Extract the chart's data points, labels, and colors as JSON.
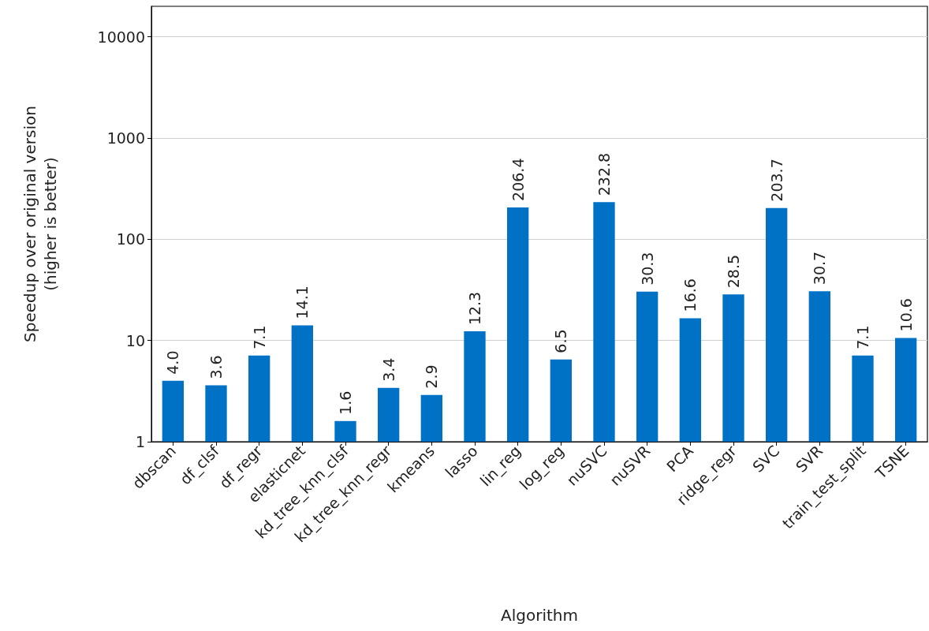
{
  "chart_data": {
    "type": "bar",
    "xlabel": "Algorithm",
    "ylabel": "Speedup over original version\n(higher is better)",
    "categories": [
      "dbscan",
      "df_clsf",
      "df_regr",
      "elasticnet",
      "kd_tree_knn_clsf",
      "kd_tree_knn_regr",
      "kmeans",
      "lasso",
      "lin_reg",
      "log_reg",
      "nuSVC",
      "nuSVR",
      "PCA",
      "ridge_regr",
      "SVC",
      "SVR",
      "train_test_split",
      "TSNE"
    ],
    "values": [
      4.0,
      3.6,
      7.1,
      14.1,
      1.6,
      3.4,
      2.9,
      12.3,
      206.4,
      6.5,
      232.8,
      30.3,
      16.6,
      28.5,
      203.7,
      30.7,
      7.1,
      10.6
    ],
    "value_labels": [
      "4.0",
      "3.6",
      "7.1",
      "14.1",
      "1.6",
      "3.4",
      "2.9",
      "12.3",
      "206.4",
      "6.5",
      "232.8",
      "30.3",
      "16.6",
      "28.5",
      "203.7",
      "30.7",
      "7.1",
      "10.6"
    ],
    "color": "#0072c6",
    "log": "y",
    "ylim": [
      1,
      20000
    ],
    "yticks": [
      1,
      10,
      100,
      1000,
      10000
    ],
    "grid": "y"
  }
}
